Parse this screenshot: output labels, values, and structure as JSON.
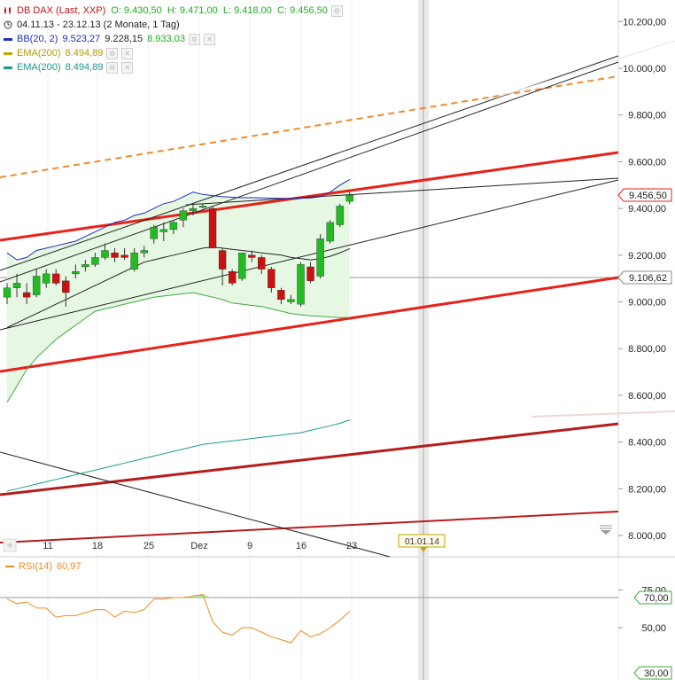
{
  "legend": {
    "title": "DB DAX (Last, XXP)",
    "ohlc": "O: 9.430,50  H: 9.471,00  L: 9.418,00  C: 9.456,50",
    "period": "04.11.13 - 23.12.13 (2 Monate, 1 Tag)",
    "bb_label": "BB(20, 2)",
    "bb_values": [
      "9.523,27",
      "9.228,15",
      "8.933,03"
    ],
    "ema1_label": "EMA(200)",
    "ema1_value": "8.494,89",
    "ema2_label": "EMA(200)",
    "ema2_value": "8.494,89",
    "rsi_label": "RSI(14)",
    "rsi_value": "60,97"
  },
  "colors": {
    "up": "#22bb22",
    "down": "#cc1111",
    "bb": "#1f2dbb",
    "bb_fill": "#e6f8e3",
    "bb_lower": "#3ea83e",
    "ema1": "#c2a700",
    "ema2": "#1a9a8a",
    "rsi": "#ef8a1e",
    "trend_red": "#e8211b",
    "trend_dark": "#b71c1c",
    "orange_dash": "#f08a2c"
  },
  "price_markers": {
    "close_label": "9.456,50",
    "level_label": "9.106,62"
  },
  "date_marker": "01.01.14",
  "rsi_markers": {
    "level_70": "70,00",
    "level_30": "30,00"
  },
  "chart_data": {
    "type": "candlestick",
    "title": "DB DAX (Last, XXP)",
    "x_tick_labels": [
      "11",
      "18",
      "25",
      "Dez",
      "9",
      "16",
      "23"
    ],
    "y_tick_labels": [
      "8.000,00",
      "8.200,00",
      "8.400,00",
      "8.600,00",
      "8.800,00",
      "9.000,00",
      "9.200,00",
      "9.400,00",
      "9.600,00",
      "9.800,00",
      "10.000,00",
      "10.200,00"
    ],
    "ylim": [
      7960,
      10260
    ],
    "rsi_tick_labels": [
      "75,00",
      "50,00"
    ],
    "rsi_ylim": [
      25,
      90
    ],
    "candles": [
      {
        "o": 9020,
        "h": 9080,
        "l": 8990,
        "c": 9060
      },
      {
        "o": 9060,
        "h": 9120,
        "l": 9020,
        "c": 9080
      },
      {
        "o": 9040,
        "h": 9080,
        "l": 8990,
        "c": 9020
      },
      {
        "o": 9030,
        "h": 9140,
        "l": 9020,
        "c": 9110
      },
      {
        "o": 9080,
        "h": 9140,
        "l": 9060,
        "c": 9120
      },
      {
        "o": 9120,
        "h": 9140,
        "l": 9070,
        "c": 9080
      },
      {
        "o": 9090,
        "h": 9110,
        "l": 8980,
        "c": 9040
      },
      {
        "o": 9120,
        "h": 9160,
        "l": 9100,
        "c": 9130
      },
      {
        "o": 9150,
        "h": 9180,
        "l": 9130,
        "c": 9160
      },
      {
        "o": 9160,
        "h": 9210,
        "l": 9150,
        "c": 9190
      },
      {
        "o": 9190,
        "h": 9250,
        "l": 9180,
        "c": 9220
      },
      {
        "o": 9210,
        "h": 9230,
        "l": 9170,
        "c": 9190
      },
      {
        "o": 9200,
        "h": 9230,
        "l": 9180,
        "c": 9190
      },
      {
        "o": 9140,
        "h": 9230,
        "l": 9130,
        "c": 9210
      },
      {
        "o": 9210,
        "h": 9240,
        "l": 9190,
        "c": 9220
      },
      {
        "o": 9270,
        "h": 9330,
        "l": 9250,
        "c": 9320
      },
      {
        "o": 9300,
        "h": 9340,
        "l": 9260,
        "c": 9310
      },
      {
        "o": 9310,
        "h": 9350,
        "l": 9290,
        "c": 9340
      },
      {
        "o": 9350,
        "h": 9400,
        "l": 9320,
        "c": 9390
      },
      {
        "o": 9390,
        "h": 9420,
        "l": 9370,
        "c": 9400
      },
      {
        "o": 9405,
        "h": 9420,
        "l": 9400,
        "c": 9410
      },
      {
        "o": 9400,
        "h": 9410,
        "l": 9230,
        "c": 9230
      },
      {
        "o": 9220,
        "h": 9230,
        "l": 9070,
        "c": 9140
      },
      {
        "o": 9130,
        "h": 9140,
        "l": 9070,
        "c": 9080
      },
      {
        "o": 9100,
        "h": 9210,
        "l": 9090,
        "c": 9210
      },
      {
        "o": 9200,
        "h": 9220,
        "l": 9170,
        "c": 9190
      },
      {
        "o": 9190,
        "h": 9200,
        "l": 9120,
        "c": 9140
      },
      {
        "o": 9140,
        "h": 9150,
        "l": 9040,
        "c": 9060
      },
      {
        "o": 9050,
        "h": 9060,
        "l": 8990,
        "c": 9010
      },
      {
        "o": 9000,
        "h": 9030,
        "l": 8990,
        "c": 9010
      },
      {
        "o": 8990,
        "h": 9170,
        "l": 8980,
        "c": 9160
      },
      {
        "o": 9150,
        "h": 9170,
        "l": 9080,
        "c": 9090
      },
      {
        "o": 9110,
        "h": 9290,
        "l": 9100,
        "c": 9270
      },
      {
        "o": 9260,
        "h": 9350,
        "l": 9250,
        "c": 9340
      },
      {
        "o": 9330,
        "h": 9420,
        "l": 9320,
        "c": 9410
      },
      {
        "o": 9430.5,
        "h": 9471,
        "l": 9418,
        "c": 9456.5
      }
    ],
    "series": [
      {
        "name": "BB upper",
        "values": [
          9210,
          9180,
          9190,
          9220,
          9230,
          9240,
          9250,
          9260,
          9280,
          9300,
          9320,
          9340,
          9350,
          9370,
          9380,
          9400,
          9420,
          9430,
          9450,
          9470,
          9460,
          9455,
          9450,
          9448,
          9446,
          9446,
          9445,
          9444,
          9443,
          9443,
          9444,
          9445,
          9450,
          9470,
          9500,
          9523.27
        ]
      },
      {
        "name": "BB middle",
        "values": [
          8890,
          8910,
          8930,
          8950,
          8970,
          8990,
          9010,
          9030,
          9050,
          9070,
          9090,
          9110,
          9130,
          9150,
          9170,
          9180,
          9190,
          9200,
          9210,
          9220,
          9230,
          9235,
          9230,
          9225,
          9220,
          9215,
          9210,
          9205,
          9200,
          9190,
          9185,
          9180,
          9185,
          9195,
          9210,
          9228.15
        ]
      },
      {
        "name": "BB lower",
        "values": [
          8570,
          8640,
          8710,
          8760,
          8800,
          8840,
          8870,
          8900,
          8930,
          8960,
          8970,
          8980,
          8990,
          9000,
          9010,
          9020,
          9025,
          9030,
          9035,
          9040,
          9030,
          9020,
          9010,
          8995,
          8990,
          8985,
          8980,
          8970,
          8960,
          8950,
          8945,
          8940,
          8938,
          8935,
          8933,
          8933.03
        ]
      }
    ],
    "ema": [
      8190,
      8200,
      8210,
      8220,
      8230,
      8240,
      8250,
      8260,
      8270,
      8280,
      8290,
      8300,
      8310,
      8320,
      8330,
      8340,
      8350,
      8360,
      8370,
      8380,
      8390,
      8395,
      8400,
      8405,
      8410,
      8415,
      8420,
      8425,
      8430,
      8435,
      8440,
      8450,
      8460,
      8470,
      8480,
      8494.89
    ],
    "rsi": [
      69,
      66,
      67,
      63,
      63,
      57,
      58,
      58,
      60,
      62,
      62,
      57,
      61,
      60,
      62,
      69,
      69,
      70,
      70,
      71,
      72,
      54,
      47,
      45,
      50,
      50,
      47,
      44,
      42,
      40,
      48,
      44,
      46,
      50,
      55,
      60.97
    ]
  }
}
